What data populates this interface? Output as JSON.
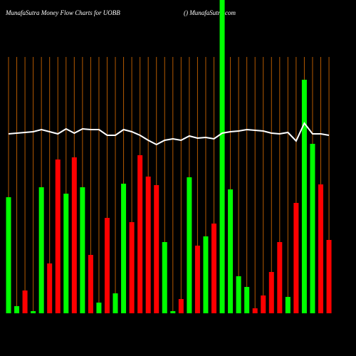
{
  "chart_data": {
    "type": "bar",
    "title": "MunafaSutra  Money Flow  Charts for UOBB",
    "subtitle": "() MunafaSutra.com",
    "categories": [
      null,
      null,
      null,
      null,
      null,
      null,
      null,
      null,
      null,
      null,
      null,
      null,
      null,
      null,
      null,
      null,
      null,
      null,
      null,
      null,
      null,
      null,
      null,
      null,
      null,
      null,
      null,
      null,
      null,
      null,
      null,
      null,
      null,
      null,
      null,
      null,
      null,
      null,
      null,
      null
    ],
    "values": [
      163,
      10,
      32,
      3,
      177,
      70,
      216,
      168,
      219,
      177,
      82,
      15,
      134,
      28,
      182,
      128,
      222,
      192,
      180,
      100,
      3,
      20,
      191,
      95,
      108,
      126,
      440,
      174,
      52,
      37,
      7,
      25,
      58,
      100,
      23,
      155,
      328,
      238,
      181,
      103
    ],
    "colors": [
      "#00ff00",
      "#00ff00",
      "#ff0000",
      "#00ff00",
      "#00ff00",
      "#ff0000",
      "#ff0000",
      "#00ff00",
      "#ff0000",
      "#00ff00",
      "#ff0000",
      "#00ff00",
      "#ff0000",
      "#00ff00",
      "#00ff00",
      "#ff0000",
      "#ff0000",
      "#ff0000",
      "#ff0000",
      "#00ff00",
      "#00ff00",
      "#ff0000",
      "#00ff00",
      "#ff0000",
      "#00ff00",
      "#ff0000",
      "#00ff00",
      "#00ff00",
      "#00ff00",
      "#00ff00",
      "#ff0000",
      "#ff0000",
      "#ff0000",
      "#ff0000",
      "#00ff00",
      "#ff0000",
      "#00ff00",
      "#00ff00",
      "#ff0000",
      "#ff0000"
    ],
    "line_values": [
      252,
      253,
      254,
      255,
      258,
      255,
      252,
      259,
      253,
      259,
      258,
      258,
      250,
      250,
      258,
      255,
      250,
      243,
      237,
      243,
      245,
      243,
      249,
      246,
      247,
      245,
      253,
      255,
      256,
      258,
      257,
      256,
      253,
      252,
      254,
      242,
      267,
      252,
      252,
      250
    ],
    "line_color": "#ffffff",
    "grid_color": "#b35900",
    "ylim": [
      0,
      440
    ]
  }
}
